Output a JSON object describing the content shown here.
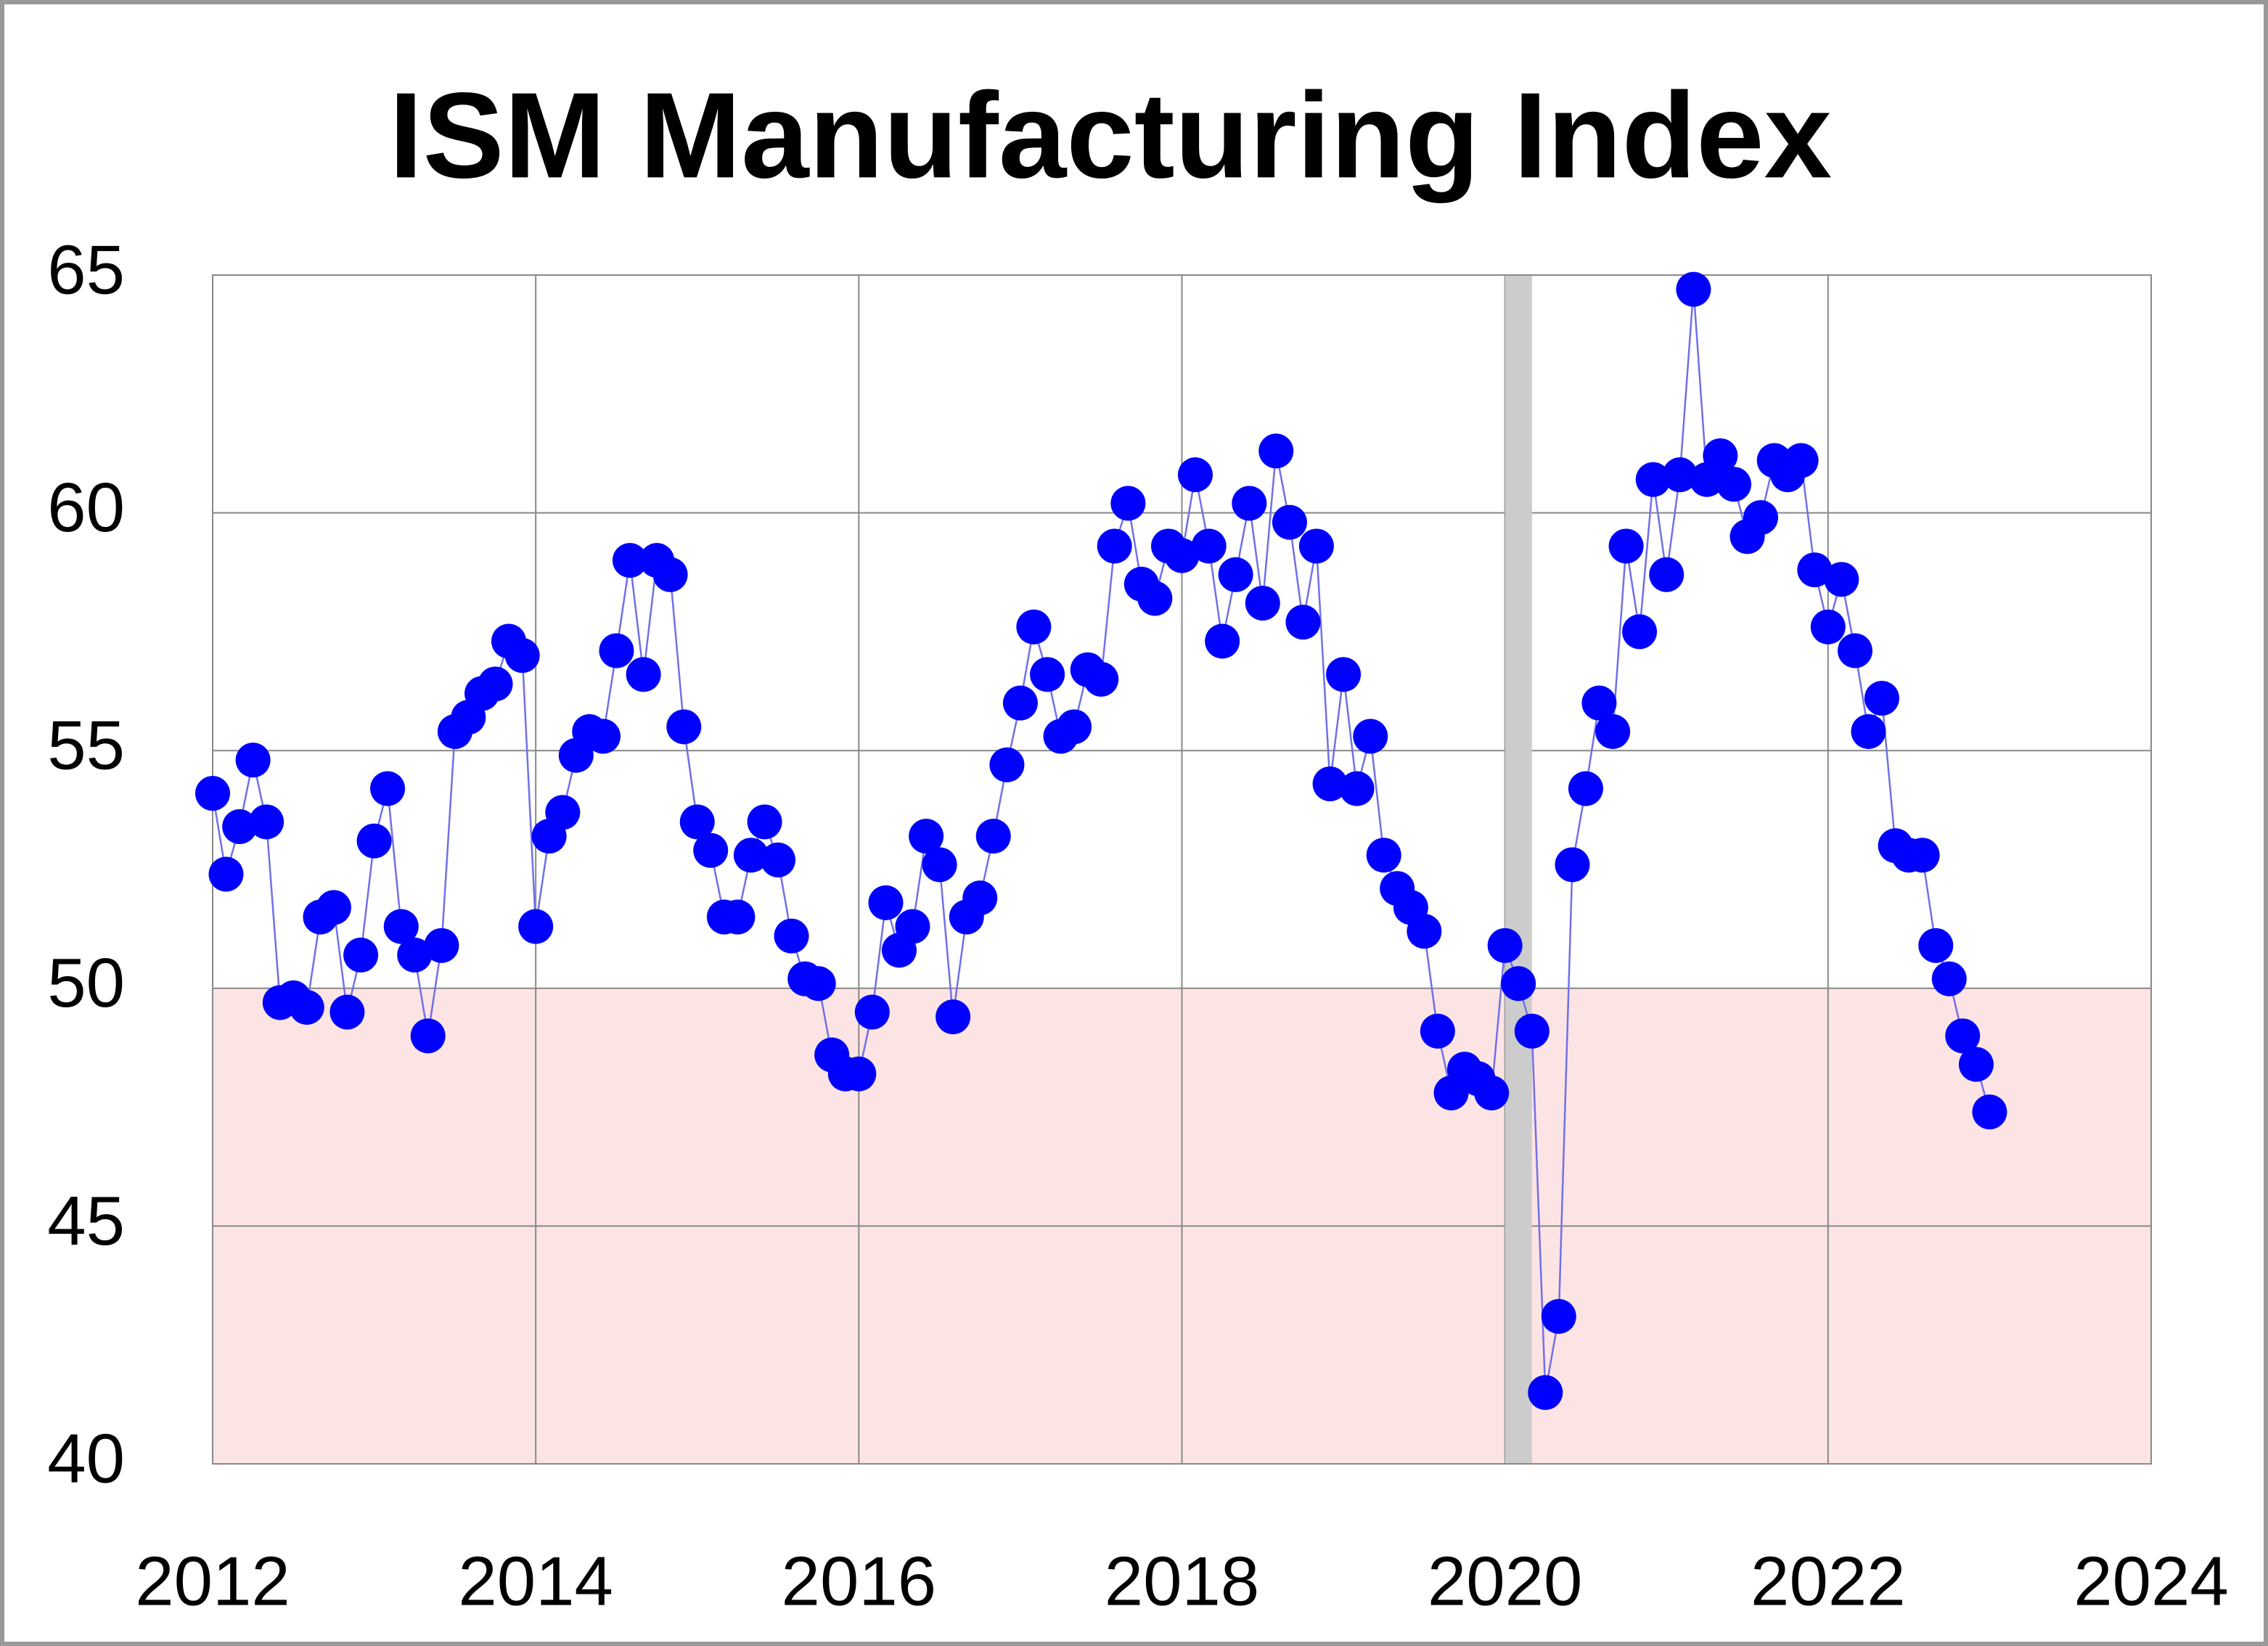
{
  "chart_data": {
    "type": "scatter",
    "title": "ISM Manufacturing Index",
    "x": [
      2012.0,
      2012.083,
      2012.167,
      2012.25,
      2012.333,
      2012.417,
      2012.5,
      2012.583,
      2012.667,
      2012.75,
      2012.833,
      2012.917,
      2013.0,
      2013.083,
      2013.167,
      2013.25,
      2013.333,
      2013.417,
      2013.5,
      2013.583,
      2013.667,
      2013.75,
      2013.833,
      2013.917,
      2014.0,
      2014.083,
      2014.167,
      2014.25,
      2014.333,
      2014.417,
      2014.5,
      2014.583,
      2014.667,
      2014.75,
      2014.833,
      2014.917,
      2015.0,
      2015.083,
      2015.167,
      2015.25,
      2015.333,
      2015.417,
      2015.5,
      2015.583,
      2015.667,
      2015.75,
      2015.833,
      2015.917,
      2016.0,
      2016.083,
      2016.167,
      2016.25,
      2016.333,
      2016.417,
      2016.5,
      2016.583,
      2016.667,
      2016.75,
      2016.833,
      2016.917,
      2017.0,
      2017.083,
      2017.167,
      2017.25,
      2017.333,
      2017.417,
      2017.5,
      2017.583,
      2017.667,
      2017.75,
      2017.833,
      2017.917,
      2018.0,
      2018.083,
      2018.167,
      2018.25,
      2018.333,
      2018.417,
      2018.5,
      2018.583,
      2018.667,
      2018.75,
      2018.833,
      2018.917,
      2019.0,
      2019.083,
      2019.167,
      2019.25,
      2019.333,
      2019.417,
      2019.5,
      2019.583,
      2019.667,
      2019.75,
      2019.833,
      2019.917,
      2020.0,
      2020.083,
      2020.167,
      2020.25,
      2020.333,
      2020.417,
      2020.5,
      2020.583,
      2020.667,
      2020.75,
      2020.833,
      2020.917,
      2021.0,
      2021.083,
      2021.167,
      2021.25,
      2021.333,
      2021.417,
      2021.5,
      2021.583,
      2021.667,
      2021.75,
      2021.833,
      2021.917,
      2022.0,
      2022.083,
      2022.167,
      2022.25,
      2022.333,
      2022.417,
      2022.5,
      2022.583,
      2022.667,
      2022.75,
      2022.833,
      2022.917,
      2023.0
    ],
    "values": [
      54.1,
      52.4,
      53.4,
      54.8,
      53.5,
      49.7,
      49.8,
      49.6,
      51.5,
      51.7,
      49.5,
      50.7,
      53.1,
      54.2,
      51.3,
      50.7,
      49.0,
      50.9,
      55.4,
      55.7,
      56.2,
      56.4,
      57.3,
      57.0,
      51.3,
      53.2,
      53.7,
      54.9,
      55.4,
      55.3,
      57.1,
      59.0,
      56.6,
      59.0,
      58.7,
      55.5,
      53.5,
      52.9,
      51.5,
      51.5,
      52.8,
      53.5,
      52.7,
      51.1,
      50.2,
      50.1,
      48.6,
      48.2,
      48.2,
      49.5,
      51.8,
      50.8,
      51.3,
      53.2,
      52.6,
      49.4,
      51.5,
      51.9,
      53.2,
      54.7,
      56.0,
      57.6,
      56.6,
      55.3,
      55.5,
      56.7,
      56.5,
      59.3,
      60.2,
      58.5,
      58.2,
      59.3,
      59.1,
      60.8,
      59.3,
      57.3,
      58.7,
      60.2,
      58.1,
      61.3,
      59.8,
      57.7,
      59.3,
      54.3,
      56.6,
      54.2,
      55.3,
      52.8,
      52.1,
      51.7,
      51.2,
      49.1,
      47.8,
      48.3,
      48.1,
      47.8,
      50.9,
      50.1,
      49.1,
      41.5,
      43.1,
      52.6,
      54.2,
      56.0,
      55.4,
      59.3,
      57.5,
      60.7,
      58.7,
      60.8,
      64.7,
      60.7,
      61.2,
      60.6,
      59.5,
      59.9,
      61.1,
      60.8,
      61.1,
      58.8,
      57.6,
      58.6,
      57.1,
      55.4,
      56.1,
      53.0,
      52.8,
      52.8,
      50.9,
      50.2,
      49.0,
      48.4,
      47.4
    ],
    "color": "#0000ff",
    "line_color": "#7070e8",
    "xlim": [
      2012,
      2024
    ],
    "xticks": [
      2012,
      2014,
      2016,
      2018,
      2020,
      2022,
      2024
    ],
    "ylim": [
      40,
      65
    ],
    "yticks": [
      40,
      45,
      50,
      55,
      60,
      65
    ],
    "grid": true,
    "contraction_below": 50,
    "contraction_color": "#fde4e4",
    "recession": [
      2020.0,
      2020.167
    ],
    "recession_color": "#cccccc"
  }
}
